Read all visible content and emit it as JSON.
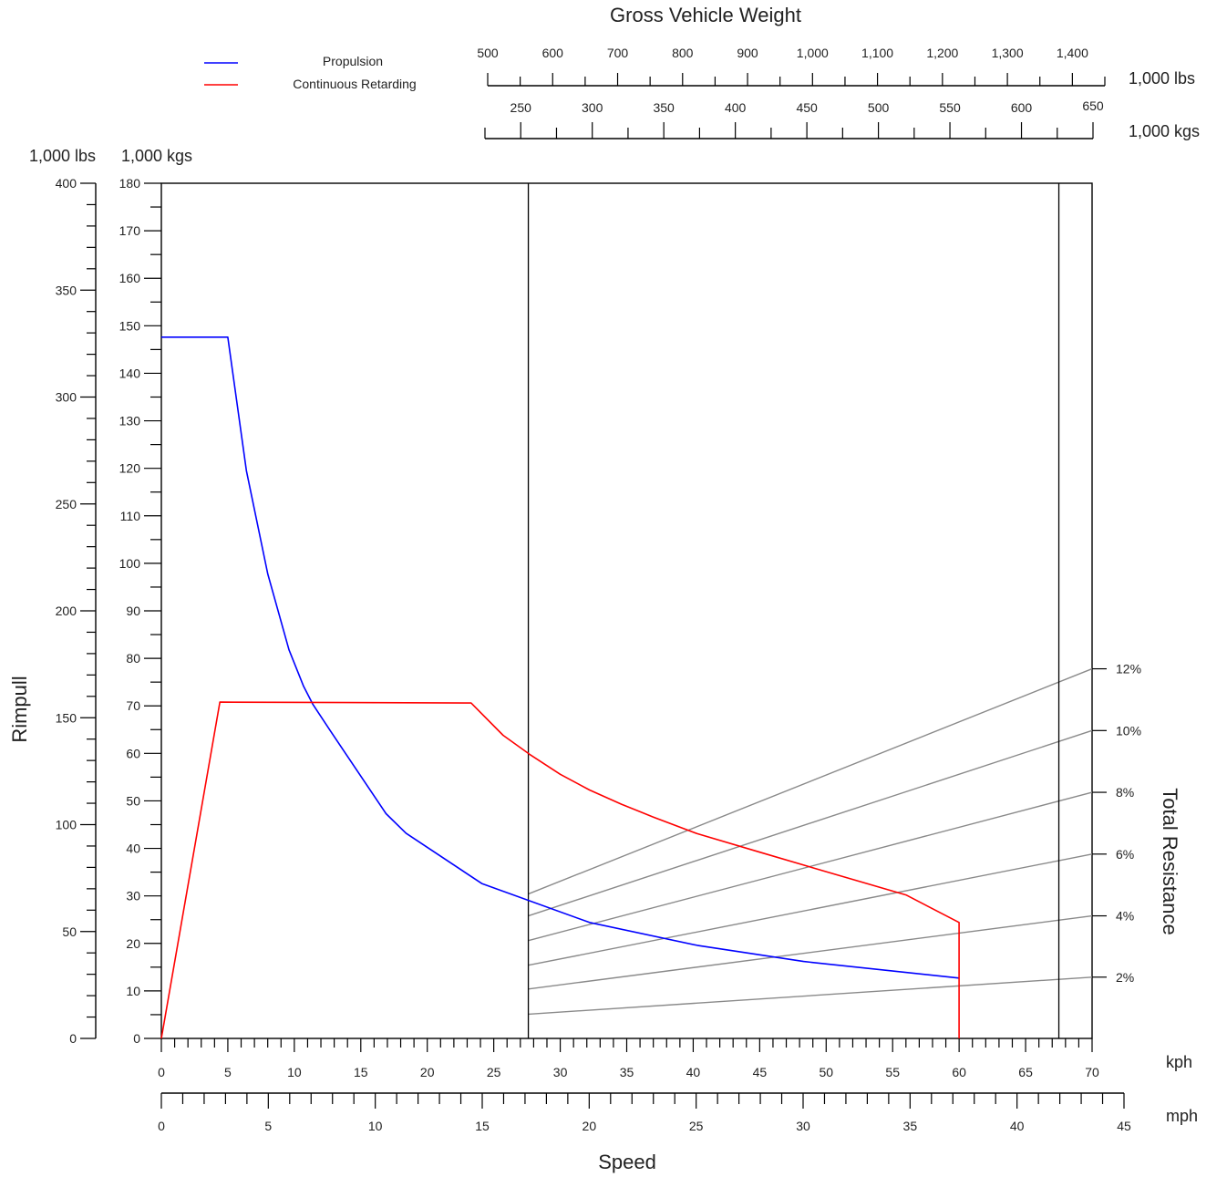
{
  "chart_data": {
    "type": "line",
    "title": "Gross Vehicle Weight",
    "xlabel": "Speed",
    "ylabel": "Rimpull",
    "y2label": "Total Resistance",
    "legend": {
      "placement": "top-left",
      "entries": [
        {
          "name": "Propulsion",
          "color": "#0000ff"
        },
        {
          "name": "Continuous Retarding",
          "color": "#ff0000"
        }
      ]
    },
    "gvw_scales": [
      {
        "unit": "1,000 lbs",
        "ticks": [
          "500",
          "600",
          "700",
          "800",
          "900",
          "1,000",
          "1,100",
          "1,200",
          "1,300",
          "1,400"
        ]
      },
      {
        "unit": "1,000 kgs",
        "ticks": [
          "250",
          "300",
          "350",
          "400",
          "450",
          "500",
          "550",
          "600",
          "650"
        ]
      }
    ],
    "y_axes": {
      "lbs": {
        "unit": "1,000 lbs",
        "ylim": [
          0,
          400
        ],
        "ticks": [
          "0",
          "50",
          "100",
          "150",
          "200",
          "250",
          "300",
          "350",
          "400"
        ]
      },
      "kgs": {
        "unit": "1,000 kgs",
        "ylim": [
          0,
          180
        ],
        "ticks": [
          "0",
          "10",
          "20",
          "30",
          "40",
          "50",
          "60",
          "70",
          "80",
          "90",
          "100",
          "110",
          "120",
          "130",
          "140",
          "150",
          "160",
          "170",
          "180"
        ]
      }
    },
    "x_axes": {
      "kph": {
        "unit": "kph",
        "xlim": [
          0,
          70
        ],
        "ticks": [
          "0",
          "5",
          "10",
          "15",
          "20",
          "25",
          "30",
          "35",
          "40",
          "45",
          "50",
          "55",
          "60",
          "65",
          "70"
        ]
      },
      "mph": {
        "unit": "mph",
        "xlim": [
          0,
          45
        ],
        "ticks": [
          "0",
          "5",
          "10",
          "15",
          "20",
          "25",
          "30",
          "35",
          "40",
          "45"
        ]
      }
    },
    "series": [
      {
        "name": "Propulsion",
        "color": "#0000ff",
        "x_kph": [
          0,
          5,
          6.4,
          8,
          9.6,
          10.7,
          11.4,
          12.7,
          16.9,
          18.4,
          24.1,
          32.2,
          40.3,
          48.3,
          60
        ],
        "y_kkg": [
          147.6,
          147.6,
          119.5,
          97.8,
          81.8,
          74.1,
          70.3,
          64.8,
          47.3,
          43.2,
          32.6,
          24.4,
          19.6,
          16.2,
          12.7
        ]
      },
      {
        "name": "Continuous Retarding",
        "color": "#ff0000",
        "x_kph": [
          0,
          4.4,
          23.3,
          25.7,
          27.7,
          30,
          32.2,
          34.6,
          37,
          40.3,
          45,
          50,
          56,
          60,
          60
        ],
        "y_kkg": [
          0,
          70.8,
          70.6,
          63.8,
          59.8,
          55.6,
          52.3,
          49.3,
          46.6,
          43.1,
          39.2,
          35.1,
          30.2,
          24.4,
          0
        ]
      }
    ],
    "markers": {
      "vertical_lines_kph": [
        27.6,
        67.5
      ]
    },
    "total_resistance": {
      "labels": [
        "12%",
        "10%",
        "8%",
        "6%",
        "4%",
        "2%"
      ],
      "left_y_kkg": [
        30.4,
        25.8,
        20.6,
        15.4,
        10.4,
        5.1
      ],
      "right_y_kkg": [
        77.8,
        64.8,
        51.8,
        38.8,
        25.8,
        12.9
      ]
    },
    "grid": false
  }
}
